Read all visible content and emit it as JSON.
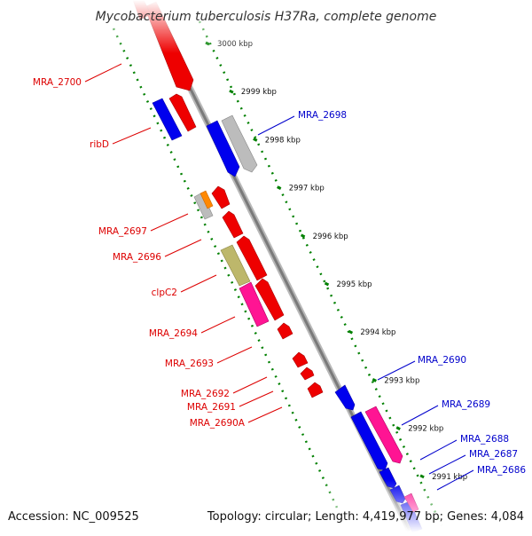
{
  "title": "Mycobacterium tuberculosis H37Ra, complete genome",
  "footer": {
    "accession": "Accession: NC_009525",
    "summary": "Topology: circular; Length: 4,419,977 bp; Genes: 4,084"
  },
  "colors": {
    "reverse_strand_label": "#dd0000",
    "forward_strand_label": "#0000cc",
    "backbone": "#888888",
    "tick": "#008000"
  },
  "kbp_ticks": [
    "3000 kbp",
    "2999 kbp",
    "2998 kbp",
    "2997 kbp",
    "2996 kbp",
    "2995 kbp",
    "2994 kbp",
    "2993 kbp",
    "2992 kbp",
    "2991 kbp"
  ],
  "gene_labels": {
    "MRA_2700": "MRA_2700",
    "ribD": "ribD",
    "MRA_2697": "MRA_2697",
    "MRA_2696": "MRA_2696",
    "clpC2": "clpC2",
    "MRA_2694": "MRA_2694",
    "MRA_2693": "MRA_2693",
    "MRA_2692": "MRA_2692",
    "MRA_2691": "MRA_2691",
    "MRA_2690A": "MRA_2690A",
    "MRA_2698": "MRA_2698",
    "MRA_2690": "MRA_2690",
    "MRA_2689": "MRA_2689",
    "MRA_2688": "MRA_2688",
    "MRA_2687": "MRA_2687",
    "MRA_2686": "MRA_2686"
  }
}
